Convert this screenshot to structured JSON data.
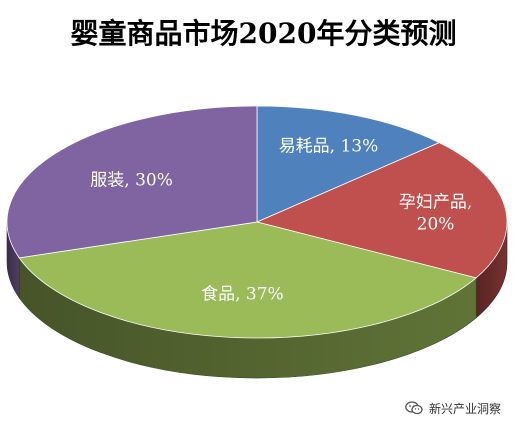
{
  "title": "婴童商品市场2020年分类预测",
  "watermark": "新兴产业洞察",
  "chart_data": {
    "type": "pie",
    "style": "3d",
    "title": "婴童商品市场2020年分类预测",
    "slices": [
      {
        "name": "易耗品",
        "value": 13,
        "label": "易耗品, 13%",
        "color": "#4f81bd"
      },
      {
        "name": "孕妇产品",
        "value": 20,
        "label": "孕妇产品, 20%",
        "color": "#c0504d"
      },
      {
        "name": "食品",
        "value": 37,
        "label": "食品, 37%",
        "color": "#9bbb59"
      },
      {
        "name": "服装",
        "value": 30,
        "label": "服装, 30%",
        "color": "#8064a2"
      }
    ]
  }
}
